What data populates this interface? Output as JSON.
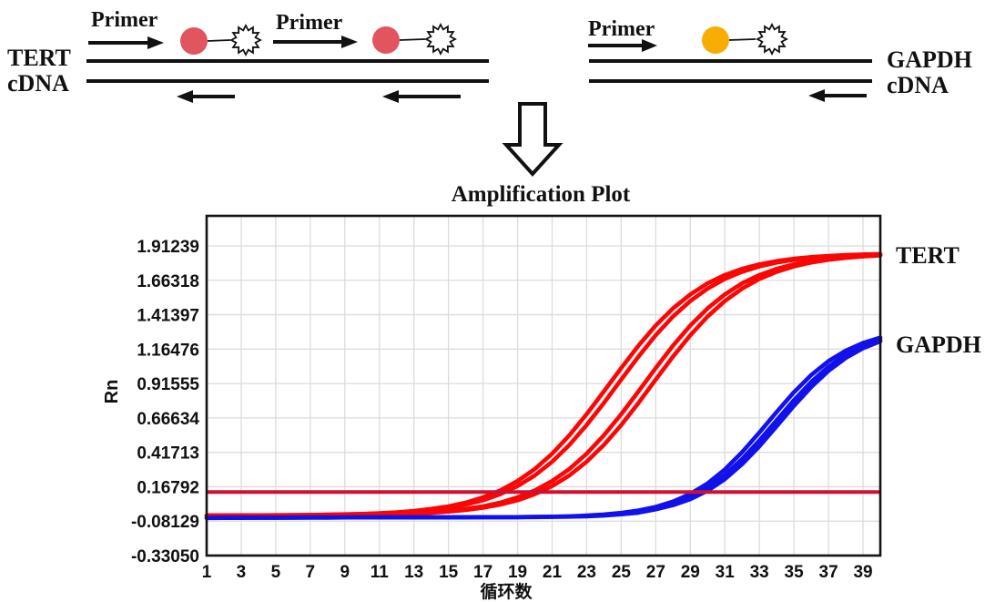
{
  "figure": {
    "title": "Amplification Plot"
  },
  "diagram": {
    "tert": {
      "gene": "TERT",
      "molecule": "cDNA",
      "primers": [
        "Primer",
        "Primer"
      ],
      "probe_color": "#e2545f"
    },
    "gapdh": {
      "gene": "GAPDH",
      "molecule": "cDNA",
      "primers": [
        "Primer"
      ],
      "probe_color": "#f8ad05"
    }
  },
  "chart_data": {
    "type": "line",
    "title": "Amplification Plot",
    "xlabel": "循环数",
    "ylabel": "Rn",
    "xlim": [
      1,
      40
    ],
    "ylim": [
      -0.3305,
      2.13
    ],
    "x_ticks": [
      1,
      3,
      5,
      7,
      9,
      11,
      13,
      15,
      17,
      19,
      21,
      23,
      25,
      27,
      29,
      31,
      33,
      35,
      37,
      39
    ],
    "y_ticks": [
      "1.91239",
      "1.66318",
      "1.41397",
      "1.16476",
      "0.91555",
      "0.66634",
      "0.41713",
      "0.16792",
      "-0.08129",
      "-0.33050"
    ],
    "grid": true,
    "legend_position": "right-outside",
    "threshold": {
      "value": 0.13,
      "color": "#cf1030"
    },
    "cycles": [
      1,
      2,
      3,
      4,
      5,
      6,
      7,
      8,
      9,
      10,
      11,
      12,
      13,
      14,
      15,
      16,
      17,
      18,
      19,
      20,
      21,
      22,
      23,
      24,
      25,
      26,
      27,
      28,
      29,
      30,
      31,
      32,
      33,
      34,
      35,
      36,
      37,
      38,
      39,
      40
    ],
    "series": [
      {
        "name": "TERT",
        "color": "#fb0505",
        "replicates": [
          [
            -0.04,
            -0.04,
            -0.039,
            -0.039,
            -0.038,
            -0.037,
            -0.036,
            -0.034,
            -0.032,
            -0.029,
            -0.024,
            -0.017,
            -0.007,
            0.007,
            0.026,
            0.053,
            0.091,
            0.141,
            0.209,
            0.296,
            0.407,
            0.541,
            0.693,
            0.859,
            1.028,
            1.19,
            1.336,
            1.46,
            1.561,
            1.641,
            1.701,
            1.746,
            1.779,
            1.802,
            1.819,
            1.831,
            1.84,
            1.846,
            1.85,
            1.853
          ],
          [
            -0.04,
            -0.04,
            -0.04,
            -0.039,
            -0.039,
            -0.038,
            -0.037,
            -0.035,
            -0.033,
            -0.03,
            -0.026,
            -0.021,
            -0.012,
            -0.001,
            0.016,
            0.039,
            0.07,
            0.114,
            0.173,
            0.25,
            0.349,
            0.471,
            0.615,
            0.775,
            0.944,
            1.111,
            1.265,
            1.401,
            1.513,
            1.603,
            1.673,
            1.725,
            1.764,
            1.792,
            1.812,
            1.826,
            1.836,
            1.843,
            1.848,
            1.852
          ],
          [
            -0.04,
            -0.04,
            -0.04,
            -0.04,
            -0.039,
            -0.039,
            -0.038,
            -0.038,
            -0.036,
            -0.034,
            -0.032,
            -0.029,
            -0.024,
            -0.017,
            -0.007,
            0.007,
            0.026,
            0.053,
            0.091,
            0.141,
            0.209,
            0.296,
            0.407,
            0.541,
            0.693,
            0.859,
            1.028,
            1.19,
            1.336,
            1.46,
            1.561,
            1.641,
            1.701,
            1.746,
            1.779,
            1.802,
            1.819,
            1.831,
            1.84,
            1.846
          ],
          [
            -0.04,
            -0.04,
            -0.04,
            -0.04,
            -0.04,
            -0.039,
            -0.039,
            -0.038,
            -0.037,
            -0.035,
            -0.033,
            -0.03,
            -0.026,
            -0.021,
            -0.012,
            -0.001,
            0.016,
            0.039,
            0.07,
            0.114,
            0.173,
            0.25,
            0.349,
            0.471,
            0.615,
            0.775,
            0.944,
            1.111,
            1.265,
            1.401,
            1.513,
            1.603,
            1.673,
            1.725,
            1.764,
            1.792,
            1.812,
            1.826,
            1.836,
            1.843
          ]
        ]
      },
      {
        "name": "GAPDH",
        "color": "#1111ec",
        "replicates": [
          [
            -0.058,
            -0.057,
            -0.057,
            -0.056,
            -0.056,
            -0.056,
            -0.055,
            -0.055,
            -0.055,
            -0.055,
            -0.055,
            -0.055,
            -0.054,
            -0.054,
            -0.054,
            -0.053,
            -0.053,
            -0.053,
            -0.052,
            -0.051,
            -0.049,
            -0.046,
            -0.041,
            -0.033,
            -0.022,
            -0.004,
            0.022,
            0.061,
            0.116,
            0.192,
            0.293,
            0.418,
            0.561,
            0.71,
            0.852,
            0.977,
            1.078,
            1.154,
            1.209,
            1.248
          ],
          [
            -0.059,
            -0.058,
            -0.058,
            -0.057,
            -0.057,
            -0.056,
            -0.056,
            -0.056,
            -0.055,
            -0.055,
            -0.055,
            -0.055,
            -0.055,
            -0.054,
            -0.054,
            -0.054,
            -0.053,
            -0.053,
            -0.053,
            -0.052,
            -0.05,
            -0.048,
            -0.044,
            -0.038,
            -0.028,
            -0.011,
            0.012,
            0.045,
            0.094,
            0.162,
            0.253,
            0.368,
            0.504,
            0.65,
            0.795,
            0.927,
            1.038,
            1.124,
            1.187,
            1.232
          ],
          [
            -0.057,
            -0.057,
            -0.056,
            -0.056,
            -0.056,
            -0.055,
            -0.055,
            -0.055,
            -0.055,
            -0.054,
            -0.054,
            -0.054,
            -0.054,
            -0.053,
            -0.053,
            -0.053,
            -0.052,
            -0.052,
            -0.052,
            -0.051,
            -0.05,
            -0.049,
            -0.046,
            -0.041,
            -0.032,
            -0.02,
            0.004,
            0.034,
            0.078,
            0.139,
            0.222,
            0.331,
            0.461,
            0.606,
            0.753,
            0.89,
            1.007,
            1.101,
            1.171,
            1.221
          ]
        ]
      }
    ]
  }
}
